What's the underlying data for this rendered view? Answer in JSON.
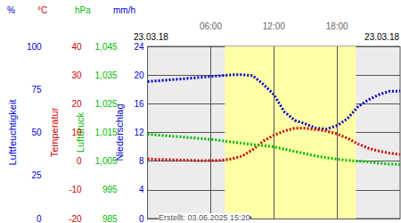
{
  "chart_data": {
    "type": "line",
    "date_left": "23.03.18",
    "date_right": "23.03.18",
    "footer": "Erstellt: 03.06.2025 15:20",
    "grid": true,
    "xlim": [
      0,
      24
    ],
    "xticks": [
      {
        "value": 6,
        "label": "06:00"
      },
      {
        "value": 12,
        "label": "12:00"
      },
      {
        "value": 18,
        "label": "18:00"
      }
    ],
    "daylight": [
      7.35,
      19.8
    ],
    "y_axes": [
      {
        "title": "Luftfeuchtigkeit",
        "unit": "%",
        "color": "#0000cc",
        "lim": [
          0,
          100
        ],
        "ticks": [
          0,
          25,
          50,
          75,
          100
        ]
      },
      {
        "title": "Temperatur",
        "unit": "°C",
        "color": "#cc0000",
        "lim": [
          -20,
          40
        ],
        "ticks": [
          -20,
          -10,
          0,
          10,
          20,
          30,
          40
        ]
      },
      {
        "title": "Luftdruck",
        "unit": "hPa",
        "color": "#00bb00",
        "lim": [
          985,
          1045
        ],
        "ticks": [
          985,
          995,
          1005,
          1015,
          1025,
          1035,
          1045
        ]
      },
      {
        "title": "Niederschlag",
        "unit": "mm/h",
        "color": "#0000cc",
        "lim": [
          0,
          24
        ],
        "ticks": [
          0,
          4,
          8,
          12,
          16,
          20,
          24
        ]
      }
    ],
    "x": [
      0,
      1,
      2,
      3,
      4,
      5,
      6,
      7,
      8,
      9,
      10,
      11,
      12,
      13,
      14,
      15,
      16,
      17,
      18,
      19,
      20,
      21,
      22,
      23,
      24
    ],
    "series": [
      {
        "axis": 0,
        "type": "line",
        "line_style": "dotted",
        "color": "#0000cc",
        "values": [
          79.6,
          80,
          80.5,
          81,
          81.5,
          82,
          82.5,
          83,
          83.5,
          83.5,
          83,
          78,
          72,
          62,
          57,
          55,
          52.5,
          52,
          54,
          58,
          65,
          69,
          72,
          74,
          74
        ]
      },
      {
        "axis": 1,
        "type": "line",
        "line_style": "dotted",
        "color": "#cc0000",
        "values": [
          0.8,
          0.6,
          0.5,
          0.4,
          0.3,
          0.2,
          0.2,
          0.3,
          0.8,
          1.8,
          4,
          7,
          9,
          10.5,
          11.5,
          11.5,
          11,
          10.5,
          9.5,
          8,
          6,
          4.5,
          3.5,
          2.8,
          2.3
        ]
      },
      {
        "axis": 2,
        "type": "line",
        "line_style": "dotted",
        "color": "#00bb00",
        "values": [
          1014.4,
          1014.1,
          1013.8,
          1013.5,
          1013.2,
          1012.9,
          1012.6,
          1012.2,
          1011.7,
          1011.2,
          1010.8,
          1010.4,
          1010,
          1009.2,
          1008.4,
          1007.6,
          1006.8,
          1006.2,
          1005.7,
          1005.3,
          1005,
          1004.7,
          1004.3,
          1004,
          1003.8
        ]
      },
      {
        "axis": 3,
        "type": "bar",
        "color": "#0000cc",
        "x": [
          9.6
        ],
        "values": [
          0.3
        ]
      }
    ]
  }
}
